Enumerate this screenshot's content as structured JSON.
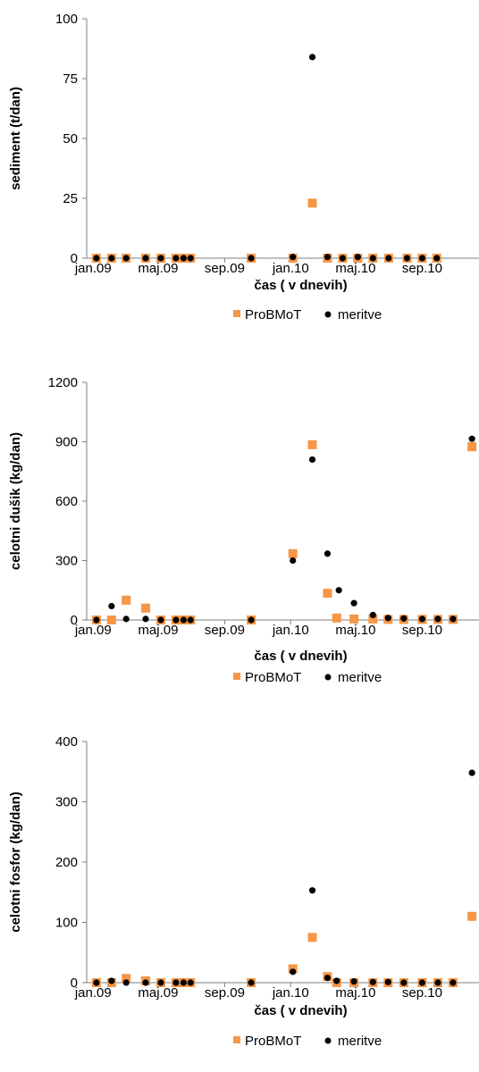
{
  "colors": {
    "probmot": "#F79646",
    "meritve": "#000000",
    "axis": "#7f7f7f"
  },
  "x_ticks": [
    "jan.09",
    "maj.09",
    "sep.09",
    "jan.10",
    "maj.10",
    "sep.10"
  ],
  "chart_data": [
    {
      "type": "scatter",
      "ylabel": "sediment (t/dan)",
      "xlabel": "čas ( v dnevih)",
      "ylim": [
        0,
        100
      ],
      "y_ticks": [
        "0",
        "25",
        "50",
        "75",
        "100"
      ],
      "xlim": [
        "2008-12-20",
        "2010-12-15"
      ],
      "x_tick_dates": [
        "2009-01-01",
        "2009-05-01",
        "2009-09-01",
        "2010-01-01",
        "2010-05-01",
        "2010-09-01"
      ],
      "legend": "bottom",
      "grid": false,
      "series": [
        {
          "name": "ProBMoT",
          "marker": "square",
          "points": [
            [
              "2009-01-07",
              0
            ],
            [
              "2009-02-04",
              0
            ],
            [
              "2009-03-03",
              0
            ],
            [
              "2009-04-08",
              0
            ],
            [
              "2009-05-06",
              0
            ],
            [
              "2009-06-03",
              0
            ],
            [
              "2009-06-17",
              0
            ],
            [
              "2009-06-30",
              0
            ],
            [
              "2009-10-20",
              0
            ],
            [
              "2010-01-05",
              0
            ],
            [
              "2010-02-10",
              23
            ],
            [
              "2010-03-10",
              0
            ],
            [
              "2010-04-07",
              0
            ],
            [
              "2010-05-05",
              0
            ],
            [
              "2010-06-02",
              0
            ],
            [
              "2010-07-01",
              0
            ],
            [
              "2010-08-04",
              0
            ],
            [
              "2010-09-01",
              0
            ],
            [
              "2010-09-28",
              0
            ]
          ]
        },
        {
          "name": "meritve",
          "marker": "circle",
          "points": [
            [
              "2009-01-07",
              0
            ],
            [
              "2009-02-04",
              0
            ],
            [
              "2009-03-03",
              0
            ],
            [
              "2009-04-08",
              0
            ],
            [
              "2009-05-06",
              0
            ],
            [
              "2009-06-03",
              0
            ],
            [
              "2009-06-17",
              0
            ],
            [
              "2009-06-30",
              0
            ],
            [
              "2009-10-20",
              0
            ],
            [
              "2010-01-05",
              0.5
            ],
            [
              "2010-02-10",
              84
            ],
            [
              "2010-03-10",
              0.5
            ],
            [
              "2010-04-07",
              0
            ],
            [
              "2010-05-05",
              0.5
            ],
            [
              "2010-06-02",
              0
            ],
            [
              "2010-07-01",
              0
            ],
            [
              "2010-08-04",
              0
            ],
            [
              "2010-09-01",
              0
            ],
            [
              "2010-09-28",
              0
            ]
          ]
        }
      ]
    },
    {
      "type": "scatter",
      "ylabel": "celotni dušik (kg/dan)",
      "xlabel": "čas ( v dnevih)",
      "ylim": [
        0,
        1200
      ],
      "y_ticks": [
        "0",
        "300",
        "600",
        "900",
        "1200"
      ],
      "xlim": [
        "2008-12-20",
        "2010-12-15"
      ],
      "x_tick_dates": [
        "2009-01-01",
        "2009-05-01",
        "2009-09-01",
        "2010-01-01",
        "2010-05-01",
        "2010-09-01"
      ],
      "legend": "bottom",
      "grid": false,
      "series": [
        {
          "name": "ProBMoT",
          "marker": "square",
          "points": [
            [
              "2009-01-07",
              0
            ],
            [
              "2009-02-04",
              0
            ],
            [
              "2009-03-03",
              100
            ],
            [
              "2009-04-08",
              60
            ],
            [
              "2009-05-06",
              0
            ],
            [
              "2009-06-03",
              0
            ],
            [
              "2009-06-17",
              0
            ],
            [
              "2009-06-30",
              0
            ],
            [
              "2009-10-20",
              0
            ],
            [
              "2010-01-05",
              335
            ],
            [
              "2010-02-10",
              885
            ],
            [
              "2010-03-10",
              135
            ],
            [
              "2010-03-27",
              10
            ],
            [
              "2010-04-28",
              5
            ],
            [
              "2010-06-02",
              5
            ],
            [
              "2010-06-30",
              3
            ],
            [
              "2010-07-29",
              3
            ],
            [
              "2010-09-01",
              3
            ],
            [
              "2010-09-30",
              3
            ],
            [
              "2010-10-28",
              3
            ],
            [
              "2010-12-02",
              875
            ]
          ]
        },
        {
          "name": "meritve",
          "marker": "circle",
          "points": [
            [
              "2009-01-07",
              0
            ],
            [
              "2009-02-04",
              70
            ],
            [
              "2009-03-03",
              5
            ],
            [
              "2009-04-08",
              5
            ],
            [
              "2009-05-06",
              0
            ],
            [
              "2009-06-03",
              0
            ],
            [
              "2009-06-17",
              0
            ],
            [
              "2009-06-30",
              0
            ],
            [
              "2009-10-20",
              0
            ],
            [
              "2010-01-05",
              300
            ],
            [
              "2010-02-10",
              810
            ],
            [
              "2010-03-10",
              335
            ],
            [
              "2010-03-31",
              150
            ],
            [
              "2010-04-28",
              85
            ],
            [
              "2010-06-02",
              25
            ],
            [
              "2010-06-30",
              10
            ],
            [
              "2010-07-29",
              8
            ],
            [
              "2010-09-01",
              5
            ],
            [
              "2010-09-30",
              5
            ],
            [
              "2010-10-28",
              5
            ],
            [
              "2010-12-02",
              915
            ]
          ]
        }
      ]
    },
    {
      "type": "scatter",
      "ylabel": "celotni fosfor (kg/dan)",
      "xlabel": "čas ( v dnevih)",
      "ylim": [
        0,
        400
      ],
      "y_ticks": [
        "0",
        "100",
        "200",
        "300",
        "400"
      ],
      "xlim": [
        "2008-12-20",
        "2010-12-15"
      ],
      "x_tick_dates": [
        "2009-01-01",
        "2009-05-01",
        "2009-09-01",
        "2010-01-01",
        "2010-05-01",
        "2010-09-01"
      ],
      "legend": "bottom",
      "grid": false,
      "series": [
        {
          "name": "ProBMoT",
          "marker": "square",
          "points": [
            [
              "2009-01-07",
              0
            ],
            [
              "2009-02-04",
              0
            ],
            [
              "2009-03-03",
              7
            ],
            [
              "2009-04-08",
              3
            ],
            [
              "2009-05-06",
              0
            ],
            [
              "2009-06-03",
              0
            ],
            [
              "2009-06-17",
              0
            ],
            [
              "2009-06-30",
              0
            ],
            [
              "2009-10-20",
              0
            ],
            [
              "2010-01-05",
              23
            ],
            [
              "2010-02-10",
              75
            ],
            [
              "2010-03-10",
              10
            ],
            [
              "2010-03-27",
              0
            ],
            [
              "2010-04-28",
              0
            ],
            [
              "2010-06-02",
              0
            ],
            [
              "2010-06-30",
              0
            ],
            [
              "2010-07-29",
              0
            ],
            [
              "2010-09-01",
              0
            ],
            [
              "2010-09-30",
              0
            ],
            [
              "2010-10-28",
              0
            ],
            [
              "2010-12-02",
              110
            ]
          ]
        },
        {
          "name": "meritve",
          "marker": "circle",
          "points": [
            [
              "2009-01-07",
              0
            ],
            [
              "2009-02-04",
              3
            ],
            [
              "2009-03-03",
              0
            ],
            [
              "2009-04-08",
              0
            ],
            [
              "2009-05-06",
              0
            ],
            [
              "2009-06-03",
              0
            ],
            [
              "2009-06-17",
              0
            ],
            [
              "2009-06-30",
              0
            ],
            [
              "2009-10-20",
              0
            ],
            [
              "2010-01-05",
              18
            ],
            [
              "2010-02-10",
              153
            ],
            [
              "2010-03-10",
              8
            ],
            [
              "2010-03-27",
              3
            ],
            [
              "2010-04-28",
              2
            ],
            [
              "2010-06-02",
              1
            ],
            [
              "2010-06-30",
              1
            ],
            [
              "2010-07-29",
              0
            ],
            [
              "2010-09-01",
              0
            ],
            [
              "2010-09-30",
              0
            ],
            [
              "2010-10-28",
              0
            ],
            [
              "2010-12-02",
              348
            ]
          ]
        }
      ]
    }
  ]
}
